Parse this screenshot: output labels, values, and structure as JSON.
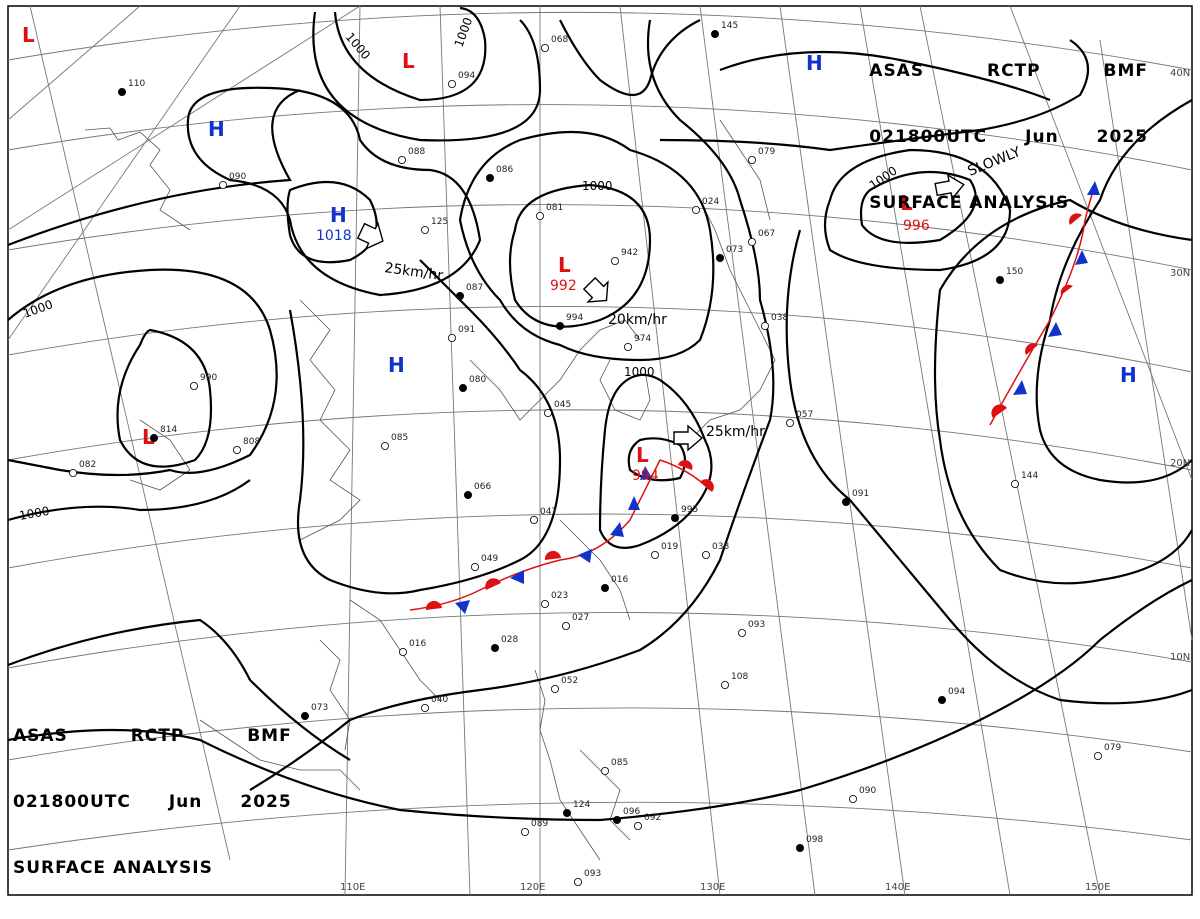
{
  "header": {
    "agency": [
      "ASAS",
      "RCTP",
      "BMF"
    ],
    "time": [
      "021800UTC",
      "Jun",
      "2025"
    ],
    "title": "SURFACE ANALYSIS"
  },
  "lat_labels": [
    "40N",
    "30N",
    "20N",
    "10N"
  ],
  "lon_labels": [
    "110E",
    "120E",
    "130E",
    "140E",
    "150E"
  ],
  "colors": {
    "high": "#1133cc",
    "low": "#dd1111",
    "isobar": "#000000",
    "front_cold": "#1133cc",
    "front_warm": "#dd1111"
  },
  "pressure_centers": [
    {
      "type": "L",
      "value": ""
    },
    {
      "type": "L",
      "value": ""
    },
    {
      "type": "H",
      "value": ""
    },
    {
      "type": "H",
      "value": "1018"
    },
    {
      "type": "L",
      "value": "992"
    },
    {
      "type": "H",
      "value": ""
    },
    {
      "type": "L",
      "value": ""
    },
    {
      "type": "L",
      "value": "994"
    },
    {
      "type": "H",
      "value": ""
    },
    {
      "type": "L",
      "value": "996"
    },
    {
      "type": "H",
      "value": ""
    }
  ],
  "isobar_labels": [
    "1000",
    "1000",
    "1000",
    "1000",
    "1000",
    "1000",
    "1000"
  ],
  "motions": [
    {
      "speed": "25km/hr"
    },
    {
      "speed": "20km/hr"
    },
    {
      "speed": "25km/hr"
    },
    {
      "speed": "SLOWLY"
    }
  ],
  "station_values": [
    "110",
    "068",
    "094",
    "145",
    "081",
    "088",
    "086",
    "090",
    "125",
    "087",
    "091",
    "942",
    "994",
    "974",
    "024",
    "073",
    "067",
    "079",
    "150",
    "038",
    "045",
    "080",
    "085",
    "808",
    "814",
    "990",
    "082",
    "066",
    "047",
    "049",
    "995",
    "019",
    "038",
    "016",
    "023",
    "027",
    "028",
    "016",
    "040",
    "073",
    "052",
    "085",
    "096",
    "092",
    "089",
    "124",
    "093",
    "108",
    "094",
    "079",
    "090",
    "098",
    "057",
    "144",
    "091",
    "093"
  ]
}
